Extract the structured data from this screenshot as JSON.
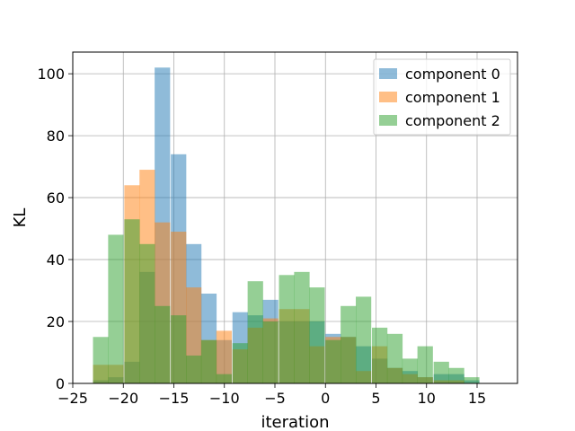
{
  "chart_data": {
    "type": "bar",
    "subtype": "histogram",
    "title": "",
    "xlabel": "iteration",
    "ylabel": "KL",
    "xlim": [
      -25,
      19
    ],
    "ylim": [
      0,
      107
    ],
    "xticks": [
      -25,
      -20,
      -15,
      -10,
      -5,
      0,
      5,
      10,
      15
    ],
    "xtick_labels": [
      "−25",
      "−20",
      "−15",
      "−10",
      "−5",
      "0",
      "5",
      "10",
      "15"
    ],
    "yticks": [
      0,
      20,
      40,
      60,
      80,
      100
    ],
    "grid": true,
    "legend_position": "top-right",
    "bin_width": 1.53,
    "series": [
      {
        "name": "component 0",
        "color": "#1f77b4",
        "bins": [
          [
            -23.0,
            1
          ],
          [
            -21.5,
            2
          ],
          [
            -19.9,
            7
          ],
          [
            -18.4,
            36
          ],
          [
            -16.9,
            102
          ],
          [
            -15.3,
            74
          ],
          [
            -13.8,
            45
          ],
          [
            -12.3,
            29
          ],
          [
            -10.8,
            14
          ],
          [
            -9.2,
            23
          ],
          [
            -7.7,
            22
          ],
          [
            -6.2,
            27
          ],
          [
            -4.6,
            20
          ],
          [
            -3.1,
            20
          ],
          [
            -1.6,
            20
          ],
          [
            0.0,
            16
          ],
          [
            1.5,
            15
          ],
          [
            3.0,
            12
          ],
          [
            4.6,
            8
          ],
          [
            6.1,
            5
          ],
          [
            7.6,
            4
          ],
          [
            9.1,
            2
          ],
          [
            10.7,
            3
          ],
          [
            12.2,
            3
          ],
          [
            13.7,
            1
          ]
        ]
      },
      {
        "name": "component 1",
        "color": "#ff7f0e",
        "bins": [
          [
            -23.0,
            6
          ],
          [
            -21.5,
            6
          ],
          [
            -19.9,
            64
          ],
          [
            -18.4,
            69
          ],
          [
            -16.9,
            52
          ],
          [
            -15.3,
            49
          ],
          [
            -13.8,
            31
          ],
          [
            -12.3,
            14
          ],
          [
            -10.8,
            17
          ],
          [
            -9.2,
            11
          ],
          [
            -7.7,
            18
          ],
          [
            -6.2,
            21
          ],
          [
            -4.6,
            24
          ],
          [
            -3.1,
            24
          ],
          [
            -1.6,
            12
          ],
          [
            0.0,
            15
          ],
          [
            1.5,
            15
          ],
          [
            3.0,
            4
          ],
          [
            4.6,
            12
          ],
          [
            6.1,
            5
          ],
          [
            7.6,
            3
          ],
          [
            9.1,
            2
          ],
          [
            10.7,
            1
          ],
          [
            12.2,
            1
          ],
          [
            13.7,
            0
          ]
        ]
      },
      {
        "name": "component 2",
        "color": "#2ca02c",
        "bins": [
          [
            -23.0,
            15
          ],
          [
            -21.5,
            48
          ],
          [
            -19.9,
            53
          ],
          [
            -18.4,
            45
          ],
          [
            -16.9,
            25
          ],
          [
            -15.3,
            22
          ],
          [
            -13.8,
            9
          ],
          [
            -12.3,
            14
          ],
          [
            -10.8,
            3
          ],
          [
            -9.2,
            13
          ],
          [
            -7.7,
            33
          ],
          [
            -6.2,
            20
          ],
          [
            -4.6,
            35
          ],
          [
            -3.1,
            36
          ],
          [
            -1.6,
            31
          ],
          [
            0.0,
            14
          ],
          [
            1.5,
            25
          ],
          [
            3.0,
            28
          ],
          [
            4.6,
            18
          ],
          [
            6.1,
            16
          ],
          [
            7.6,
            8
          ],
          [
            9.1,
            12
          ],
          [
            10.7,
            7
          ],
          [
            12.2,
            5
          ],
          [
            13.7,
            2
          ]
        ]
      }
    ]
  }
}
